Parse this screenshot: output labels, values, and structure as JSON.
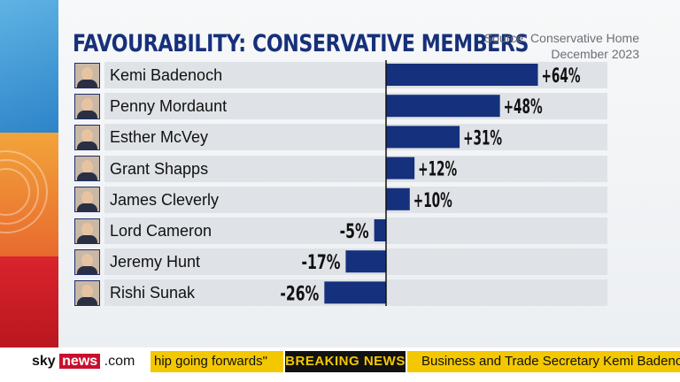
{
  "title": "FAVOURABILITY: CONSERVATIVE MEMBERS",
  "source": {
    "line1": "Source: Conservative Home",
    "line2": "December 2023"
  },
  "chart_data": {
    "type": "bar",
    "orientation": "horizontal",
    "categories": [
      "Kemi Badenoch",
      "Penny Mordaunt",
      "Esther McVey",
      "Grant Shapps",
      "James Cleverly",
      "Lord Cameron",
      "Jeremy Hunt",
      "Rishi Sunak"
    ],
    "values": [
      64,
      48,
      31,
      12,
      10,
      -5,
      -17,
      -26
    ],
    "labels": [
      "+64%",
      "+48%",
      "+31%",
      "+12%",
      "+10%",
      "-5%",
      "-17%",
      "-26%"
    ],
    "bar_color": "#15307c",
    "title": "FAVOURABILITY: CONSERVATIVE MEMBERS",
    "grid": false
  },
  "ticker": {
    "brand_sky": "sky",
    "brand_news": "news",
    "brand_com": ".com",
    "prev_text": "hip going forwards\"",
    "breaking_label": "BREAKING NEWS",
    "headline": "Business and Trade Secretary Kemi Badenoch"
  },
  "colors": {
    "title": "#17307a",
    "ticker_yellow": "#f4c800",
    "breaking_bg": "#111111",
    "sky_red": "#c8102e"
  }
}
